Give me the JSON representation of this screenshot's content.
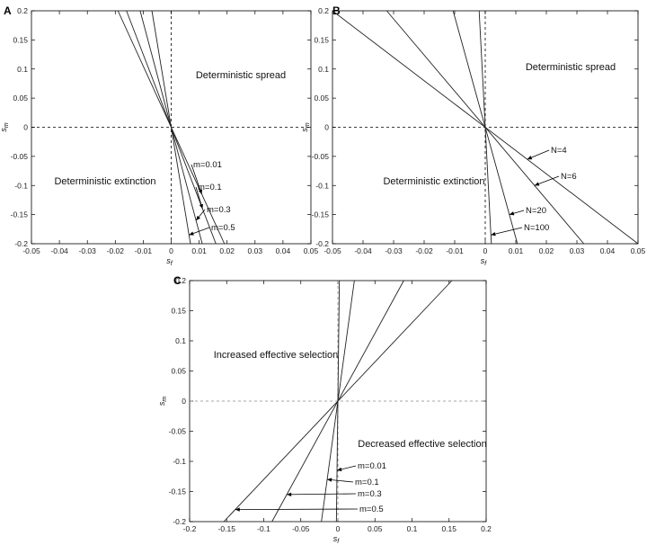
{
  "chart_data": [
    {
      "type": "line",
      "panel": "A",
      "xlabel": "s_f",
      "ylabel": "s_m",
      "xlim": [
        -0.05,
        0.05
      ],
      "ylim": [
        -0.2,
        0.2
      ],
      "xticks": [
        "-0.05",
        "-0.04",
        "-0.03",
        "-0.02",
        "-0.01",
        "0",
        "0.01",
        "0.02",
        "0.03",
        "0.04",
        "0.05"
      ],
      "yticks": [
        "0.2",
        "0.15",
        "0.1",
        "0.05",
        "0",
        "-0.05",
        "-0.1",
        "-0.15",
        "-0.2"
      ],
      "regions": [
        {
          "text": "Deterministic spread",
          "location": "upper-right"
        },
        {
          "text": "Deterministic extinction",
          "location": "lower-left"
        }
      ],
      "series": [
        {
          "name": "m=0.01",
          "slope": -10.5
        },
        {
          "name": "m=0.1",
          "slope": -12.5
        },
        {
          "name": "m=0.3",
          "slope": -18.0
        },
        {
          "name": "m=0.5",
          "slope": -29.0
        }
      ]
    },
    {
      "type": "line",
      "panel": "B",
      "xlabel": "s_f",
      "ylabel": "s_m",
      "xlim": [
        -0.05,
        0.05
      ],
      "ylim": [
        -0.2,
        0.2
      ],
      "xticks": [
        "-0.05",
        "-0.04",
        "-0.03",
        "-0.02",
        "-0.01",
        "0",
        "0.01",
        "0.02",
        "0.03",
        "0.04",
        "0.05"
      ],
      "yticks": [
        "0.2",
        "0.15",
        "0.1",
        "0.05",
        "0",
        "-0.05",
        "-0.1",
        "-0.15",
        "-0.2"
      ],
      "regions": [
        {
          "text": "Deterministic spread",
          "location": "upper-right"
        },
        {
          "text": "Deterministic extinction",
          "location": "lower-left"
        }
      ],
      "series": [
        {
          "name": "N=4",
          "slope": -4.0
        },
        {
          "name": "N=6",
          "slope": -6.2
        },
        {
          "name": "N=20",
          "slope": -19.0
        },
        {
          "name": "N=100",
          "slope": -100.0
        }
      ]
    },
    {
      "type": "line",
      "panel": "C",
      "xlabel": "s_f",
      "ylabel": "s_m",
      "xlim": [
        -0.2,
        0.2
      ],
      "ylim": [
        -0.2,
        0.2
      ],
      "xticks": [
        "-0.2",
        "-0.15",
        "-0.1",
        "-0.05",
        "0",
        "0.05",
        "0.1",
        "0.15",
        "0.2"
      ],
      "yticks": [
        "0.2",
        "0.15",
        "0.1",
        "0.05",
        "0",
        "-0.05",
        "-0.1",
        "-0.15",
        "-0.2"
      ],
      "regions": [
        {
          "text": "Increased effective selection",
          "location": "upper-left"
        },
        {
          "text": "Decreased effective selection",
          "location": "lower-right"
        }
      ],
      "series": [
        {
          "name": "m=0.01",
          "slope": 100.0
        },
        {
          "name": "m=0.1",
          "slope": 9.0
        },
        {
          "name": "m=0.3",
          "slope": 2.25
        },
        {
          "name": "m=0.5",
          "slope": 1.3
        }
      ]
    }
  ]
}
